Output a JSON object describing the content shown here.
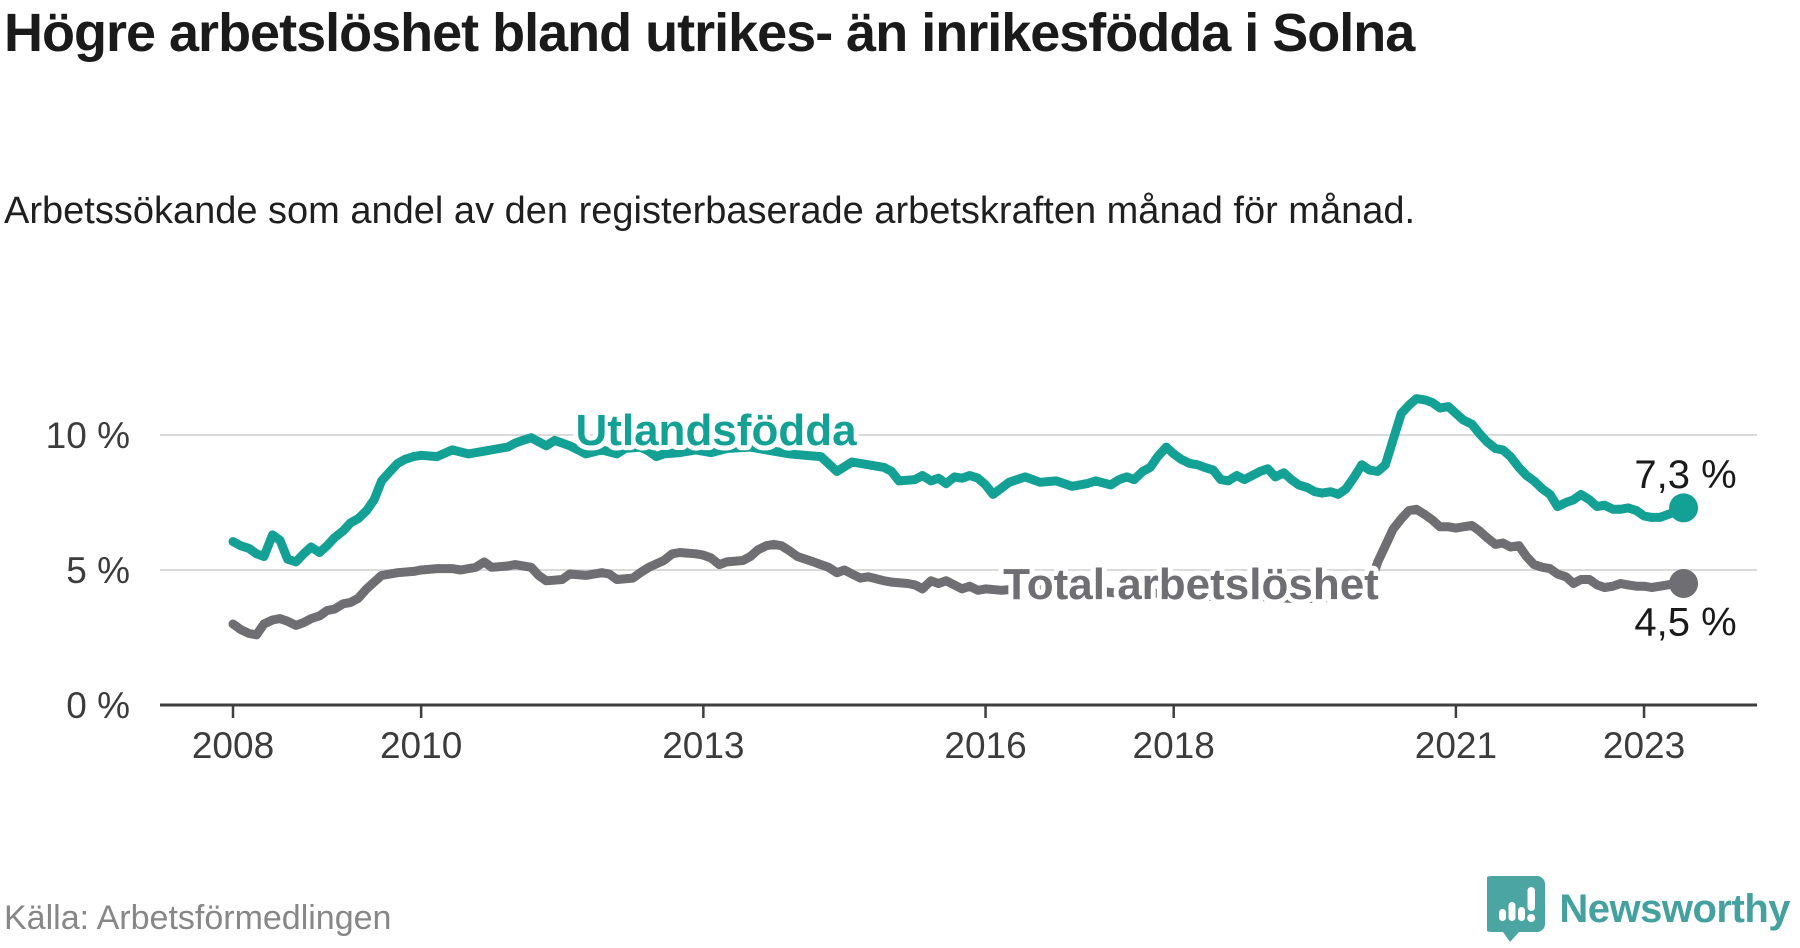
{
  "header": {
    "title": "Högre arbetslöshet bland utrikes- än inrikesfödda i Solna",
    "subtitle": "Arbetssökande som andel av den registerbaserade arbetskraften månad för månad."
  },
  "footer": {
    "source": "Källa: Arbetsförmedlingen",
    "brand": "Newsworthy"
  },
  "colors": {
    "accent_teal": "#14a195",
    "neutral_gray": "#6e6e73",
    "grid": "#dadada",
    "axis": "#3f3f3f",
    "tick_text": "#3c3c3c",
    "logo_teal": "#4ba5a3"
  },
  "chart_data": {
    "type": "line",
    "title": "Högre arbetslöshet bland utrikes- än inrikesfödda i Solna",
    "xlabel": "",
    "ylabel": "Arbetssökande som andel av den registerbaserade arbetskraften",
    "grid": "horizontal",
    "legend_position": "inline-labels",
    "x_range": [
      2008,
      2023.5
    ],
    "ylim": [
      0,
      12
    ],
    "x_ticks": [
      {
        "label": "2008",
        "year": 2008
      },
      {
        "label": "2010",
        "year": 2010
      },
      {
        "label": "2013",
        "year": 2013
      },
      {
        "label": "2016",
        "year": 2016
      },
      {
        "label": "2018",
        "year": 2018
      },
      {
        "label": "2021",
        "year": 2021
      },
      {
        "label": "2023",
        "year": 2023
      }
    ],
    "y_ticks": [
      {
        "label": "0 %",
        "value": 0
      },
      {
        "label": "5 %",
        "value": 5
      },
      {
        "label": "10 %",
        "value": 10
      }
    ],
    "series": [
      {
        "name": "Utlandsfödda",
        "color": "#14a195",
        "end_label": "7,3 %",
        "end_value": 7.3,
        "points": [
          [
            2008.0,
            6.05
          ],
          [
            2008.08,
            5.9
          ],
          [
            2008.17,
            5.8
          ],
          [
            2008.25,
            5.6
          ],
          [
            2008.33,
            5.5
          ],
          [
            2008.42,
            6.3
          ],
          [
            2008.5,
            6.1
          ],
          [
            2008.58,
            5.4
          ],
          [
            2008.67,
            5.3
          ],
          [
            2008.75,
            5.6
          ],
          [
            2008.83,
            5.85
          ],
          [
            2008.92,
            5.65
          ],
          [
            2009.0,
            5.9
          ],
          [
            2009.08,
            6.2
          ],
          [
            2009.17,
            6.45
          ],
          [
            2009.25,
            6.75
          ],
          [
            2009.33,
            6.9
          ],
          [
            2009.42,
            7.2
          ],
          [
            2009.5,
            7.6
          ],
          [
            2009.58,
            8.3
          ],
          [
            2009.67,
            8.65
          ],
          [
            2009.75,
            8.95
          ],
          [
            2009.83,
            9.1
          ],
          [
            2009.92,
            9.2
          ],
          [
            2010.0,
            9.25
          ],
          [
            2010.17,
            9.2
          ],
          [
            2010.33,
            9.45
          ],
          [
            2010.5,
            9.3
          ],
          [
            2010.67,
            9.4
          ],
          [
            2010.83,
            9.5
          ],
          [
            2010.92,
            9.55
          ],
          [
            2011.0,
            9.7
          ],
          [
            2011.08,
            9.8
          ],
          [
            2011.17,
            9.9
          ],
          [
            2011.25,
            9.75
          ],
          [
            2011.33,
            9.6
          ],
          [
            2011.42,
            9.8
          ],
          [
            2011.58,
            9.6
          ],
          [
            2011.67,
            9.45
          ],
          [
            2011.75,
            9.3
          ],
          [
            2011.92,
            9.45
          ],
          [
            2012.08,
            9.3
          ],
          [
            2012.17,
            9.5
          ],
          [
            2012.33,
            9.55
          ],
          [
            2012.42,
            9.4
          ],
          [
            2012.5,
            9.2
          ],
          [
            2012.58,
            9.3
          ],
          [
            2012.75,
            9.35
          ],
          [
            2012.92,
            9.45
          ],
          [
            2013.08,
            9.35
          ],
          [
            2013.25,
            9.5
          ],
          [
            2013.5,
            9.55
          ],
          [
            2013.75,
            9.4
          ],
          [
            2013.92,
            9.3
          ],
          [
            2014.08,
            9.25
          ],
          [
            2014.25,
            9.2
          ],
          [
            2014.42,
            8.65
          ],
          [
            2014.58,
            9.0
          ],
          [
            2014.75,
            8.9
          ],
          [
            2014.92,
            8.8
          ],
          [
            2015.0,
            8.65
          ],
          [
            2015.08,
            8.3
          ],
          [
            2015.25,
            8.35
          ],
          [
            2015.33,
            8.5
          ],
          [
            2015.42,
            8.3
          ],
          [
            2015.5,
            8.4
          ],
          [
            2015.58,
            8.2
          ],
          [
            2015.67,
            8.45
          ],
          [
            2015.75,
            8.4
          ],
          [
            2015.83,
            8.5
          ],
          [
            2015.92,
            8.4
          ],
          [
            2016.0,
            8.15
          ],
          [
            2016.08,
            7.8
          ],
          [
            2016.25,
            8.25
          ],
          [
            2016.42,
            8.45
          ],
          [
            2016.58,
            8.25
          ],
          [
            2016.75,
            8.3
          ],
          [
            2016.92,
            8.1
          ],
          [
            2017.08,
            8.2
          ],
          [
            2017.17,
            8.3
          ],
          [
            2017.33,
            8.15
          ],
          [
            2017.42,
            8.35
          ],
          [
            2017.5,
            8.45
          ],
          [
            2017.58,
            8.35
          ],
          [
            2017.67,
            8.65
          ],
          [
            2017.75,
            8.8
          ],
          [
            2017.83,
            9.2
          ],
          [
            2017.92,
            9.55
          ],
          [
            2018.0,
            9.3
          ],
          [
            2018.08,
            9.1
          ],
          [
            2018.17,
            8.95
          ],
          [
            2018.25,
            8.9
          ],
          [
            2018.33,
            8.8
          ],
          [
            2018.42,
            8.7
          ],
          [
            2018.5,
            8.35
          ],
          [
            2018.58,
            8.3
          ],
          [
            2018.67,
            8.5
          ],
          [
            2018.75,
            8.35
          ],
          [
            2018.92,
            8.65
          ],
          [
            2019.0,
            8.75
          ],
          [
            2019.08,
            8.45
          ],
          [
            2019.17,
            8.6
          ],
          [
            2019.25,
            8.35
          ],
          [
            2019.33,
            8.15
          ],
          [
            2019.42,
            8.05
          ],
          [
            2019.5,
            7.9
          ],
          [
            2019.58,
            7.85
          ],
          [
            2019.67,
            7.9
          ],
          [
            2019.75,
            7.8
          ],
          [
            2019.83,
            8.0
          ],
          [
            2019.92,
            8.45
          ],
          [
            2020.0,
            8.9
          ],
          [
            2020.08,
            8.7
          ],
          [
            2020.17,
            8.65
          ],
          [
            2020.25,
            8.9
          ],
          [
            2020.33,
            9.8
          ],
          [
            2020.42,
            10.8
          ],
          [
            2020.5,
            11.1
          ],
          [
            2020.58,
            11.35
          ],
          [
            2020.67,
            11.3
          ],
          [
            2020.75,
            11.2
          ],
          [
            2020.83,
            11.0
          ],
          [
            2020.92,
            11.05
          ],
          [
            2021.0,
            10.8
          ],
          [
            2021.08,
            10.55
          ],
          [
            2021.17,
            10.4
          ],
          [
            2021.25,
            10.05
          ],
          [
            2021.33,
            9.75
          ],
          [
            2021.42,
            9.5
          ],
          [
            2021.5,
            9.45
          ],
          [
            2021.58,
            9.2
          ],
          [
            2021.67,
            8.8
          ],
          [
            2021.75,
            8.5
          ],
          [
            2021.83,
            8.3
          ],
          [
            2021.92,
            8.0
          ],
          [
            2022.0,
            7.8
          ],
          [
            2022.08,
            7.35
          ],
          [
            2022.17,
            7.5
          ],
          [
            2022.25,
            7.6
          ],
          [
            2022.33,
            7.8
          ],
          [
            2022.42,
            7.6
          ],
          [
            2022.5,
            7.35
          ],
          [
            2022.58,
            7.4
          ],
          [
            2022.67,
            7.25
          ],
          [
            2022.75,
            7.25
          ],
          [
            2022.83,
            7.3
          ],
          [
            2022.92,
            7.2
          ],
          [
            2023.0,
            7.0
          ],
          [
            2023.08,
            6.95
          ],
          [
            2023.17,
            6.95
          ],
          [
            2023.25,
            7.05
          ],
          [
            2023.33,
            7.15
          ],
          [
            2023.42,
            7.3
          ]
        ]
      },
      {
        "name": "Total arbetslöshet",
        "color": "#6e6e73",
        "end_label": "4,5 %",
        "end_value": 4.5,
        "points": [
          [
            2008.0,
            3.0
          ],
          [
            2008.08,
            2.8
          ],
          [
            2008.17,
            2.65
          ],
          [
            2008.25,
            2.6
          ],
          [
            2008.33,
            3.0
          ],
          [
            2008.42,
            3.15
          ],
          [
            2008.5,
            3.2
          ],
          [
            2008.58,
            3.1
          ],
          [
            2008.67,
            2.95
          ],
          [
            2008.75,
            3.05
          ],
          [
            2008.83,
            3.2
          ],
          [
            2008.92,
            3.3
          ],
          [
            2009.0,
            3.5
          ],
          [
            2009.08,
            3.55
          ],
          [
            2009.17,
            3.75
          ],
          [
            2009.25,
            3.8
          ],
          [
            2009.33,
            3.95
          ],
          [
            2009.42,
            4.3
          ],
          [
            2009.5,
            4.55
          ],
          [
            2009.58,
            4.8
          ],
          [
            2009.75,
            4.9
          ],
          [
            2009.92,
            4.95
          ],
          [
            2010.0,
            5.0
          ],
          [
            2010.17,
            5.05
          ],
          [
            2010.33,
            5.05
          ],
          [
            2010.42,
            5.0
          ],
          [
            2010.58,
            5.1
          ],
          [
            2010.67,
            5.3
          ],
          [
            2010.75,
            5.1
          ],
          [
            2010.92,
            5.15
          ],
          [
            2011.0,
            5.2
          ],
          [
            2011.17,
            5.1
          ],
          [
            2011.25,
            4.8
          ],
          [
            2011.33,
            4.6
          ],
          [
            2011.5,
            4.65
          ],
          [
            2011.58,
            4.85
          ],
          [
            2011.75,
            4.8
          ],
          [
            2011.92,
            4.9
          ],
          [
            2012.0,
            4.85
          ],
          [
            2012.08,
            4.65
          ],
          [
            2012.25,
            4.7
          ],
          [
            2012.33,
            4.9
          ],
          [
            2012.42,
            5.1
          ],
          [
            2012.58,
            5.35
          ],
          [
            2012.67,
            5.6
          ],
          [
            2012.75,
            5.65
          ],
          [
            2012.92,
            5.6
          ],
          [
            2013.0,
            5.55
          ],
          [
            2013.08,
            5.45
          ],
          [
            2013.17,
            5.2
          ],
          [
            2013.25,
            5.3
          ],
          [
            2013.42,
            5.35
          ],
          [
            2013.5,
            5.5
          ],
          [
            2013.58,
            5.75
          ],
          [
            2013.67,
            5.9
          ],
          [
            2013.75,
            5.95
          ],
          [
            2013.83,
            5.9
          ],
          [
            2013.92,
            5.7
          ],
          [
            2014.0,
            5.5
          ],
          [
            2014.17,
            5.3
          ],
          [
            2014.25,
            5.2
          ],
          [
            2014.33,
            5.1
          ],
          [
            2014.42,
            4.9
          ],
          [
            2014.5,
            5.0
          ],
          [
            2014.58,
            4.85
          ],
          [
            2014.67,
            4.7
          ],
          [
            2014.75,
            4.75
          ],
          [
            2014.92,
            4.6
          ],
          [
            2015.0,
            4.55
          ],
          [
            2015.17,
            4.5
          ],
          [
            2015.25,
            4.45
          ],
          [
            2015.33,
            4.3
          ],
          [
            2015.42,
            4.6
          ],
          [
            2015.5,
            4.5
          ],
          [
            2015.58,
            4.6
          ],
          [
            2015.75,
            4.3
          ],
          [
            2015.83,
            4.4
          ],
          [
            2015.92,
            4.25
          ],
          [
            2016.0,
            4.3
          ],
          [
            2016.17,
            4.25
          ],
          [
            2016.33,
            4.3
          ],
          [
            2016.5,
            4.25
          ],
          [
            2016.67,
            4.3
          ],
          [
            2016.83,
            4.2
          ],
          [
            2017.0,
            4.15
          ],
          [
            2017.25,
            4.2
          ],
          [
            2017.5,
            4.1
          ],
          [
            2017.75,
            4.15
          ],
          [
            2018.0,
            4.1
          ],
          [
            2018.25,
            4.05
          ],
          [
            2018.5,
            4.0
          ],
          [
            2018.75,
            4.05
          ],
          [
            2019.0,
            4.0
          ],
          [
            2019.25,
            3.95
          ],
          [
            2019.5,
            3.95
          ],
          [
            2019.75,
            4.0
          ],
          [
            2019.92,
            4.1
          ],
          [
            2020.08,
            4.4
          ],
          [
            2020.17,
            5.3
          ],
          [
            2020.25,
            5.9
          ],
          [
            2020.33,
            6.5
          ],
          [
            2020.42,
            6.9
          ],
          [
            2020.5,
            7.2
          ],
          [
            2020.58,
            7.25
          ],
          [
            2020.67,
            7.05
          ],
          [
            2020.75,
            6.85
          ],
          [
            2020.83,
            6.6
          ],
          [
            2020.92,
            6.6
          ],
          [
            2021.0,
            6.55
          ],
          [
            2021.08,
            6.6
          ],
          [
            2021.17,
            6.65
          ],
          [
            2021.25,
            6.45
          ],
          [
            2021.33,
            6.2
          ],
          [
            2021.42,
            5.95
          ],
          [
            2021.5,
            6.0
          ],
          [
            2021.58,
            5.85
          ],
          [
            2021.67,
            5.9
          ],
          [
            2021.75,
            5.5
          ],
          [
            2021.83,
            5.2
          ],
          [
            2021.92,
            5.1
          ],
          [
            2022.0,
            5.05
          ],
          [
            2022.08,
            4.85
          ],
          [
            2022.17,
            4.75
          ],
          [
            2022.25,
            4.5
          ],
          [
            2022.33,
            4.65
          ],
          [
            2022.42,
            4.65
          ],
          [
            2022.5,
            4.45
          ],
          [
            2022.58,
            4.35
          ],
          [
            2022.67,
            4.4
          ],
          [
            2022.75,
            4.5
          ],
          [
            2022.83,
            4.45
          ],
          [
            2022.92,
            4.4
          ],
          [
            2023.0,
            4.4
          ],
          [
            2023.08,
            4.35
          ],
          [
            2023.17,
            4.4
          ],
          [
            2023.25,
            4.45
          ],
          [
            2023.33,
            4.5
          ],
          [
            2023.42,
            4.5
          ]
        ]
      }
    ]
  }
}
